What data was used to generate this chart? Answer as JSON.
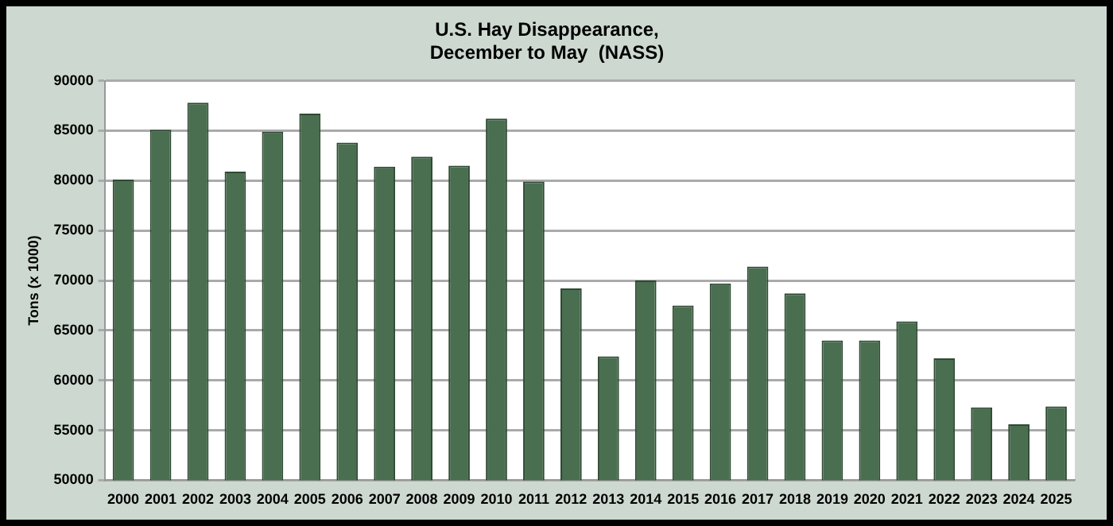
{
  "chart_data": {
    "type": "bar",
    "title": "U.S. Hay Disappearance,\nDecember to May  (NASS)",
    "ylabel": "Tons (x 1000)",
    "categories": [
      "2000",
      "2001",
      "2002",
      "2003",
      "2004",
      "2005",
      "2006",
      "2007",
      "2008",
      "2009",
      "2010",
      "2011",
      "2012",
      "2013",
      "2014",
      "2015",
      "2016",
      "2017",
      "2018",
      "2019",
      "2020",
      "2021",
      "2022",
      "2023",
      "2024",
      "2025"
    ],
    "values": [
      80100,
      85100,
      87800,
      80900,
      84900,
      86700,
      83800,
      81400,
      82400,
      81500,
      86200,
      79900,
      69200,
      62400,
      70000,
      67500,
      69700,
      71400,
      68700,
      64000,
      64000,
      65900,
      62200,
      57300,
      55600,
      57400
    ],
    "color": "#4a6e50",
    "ylim": [
      50000,
      90000
    ],
    "yticks": [
      50000,
      55000,
      60000,
      65000,
      70000,
      75000,
      80000,
      85000,
      90000
    ],
    "grid": "y",
    "legend": false
  }
}
